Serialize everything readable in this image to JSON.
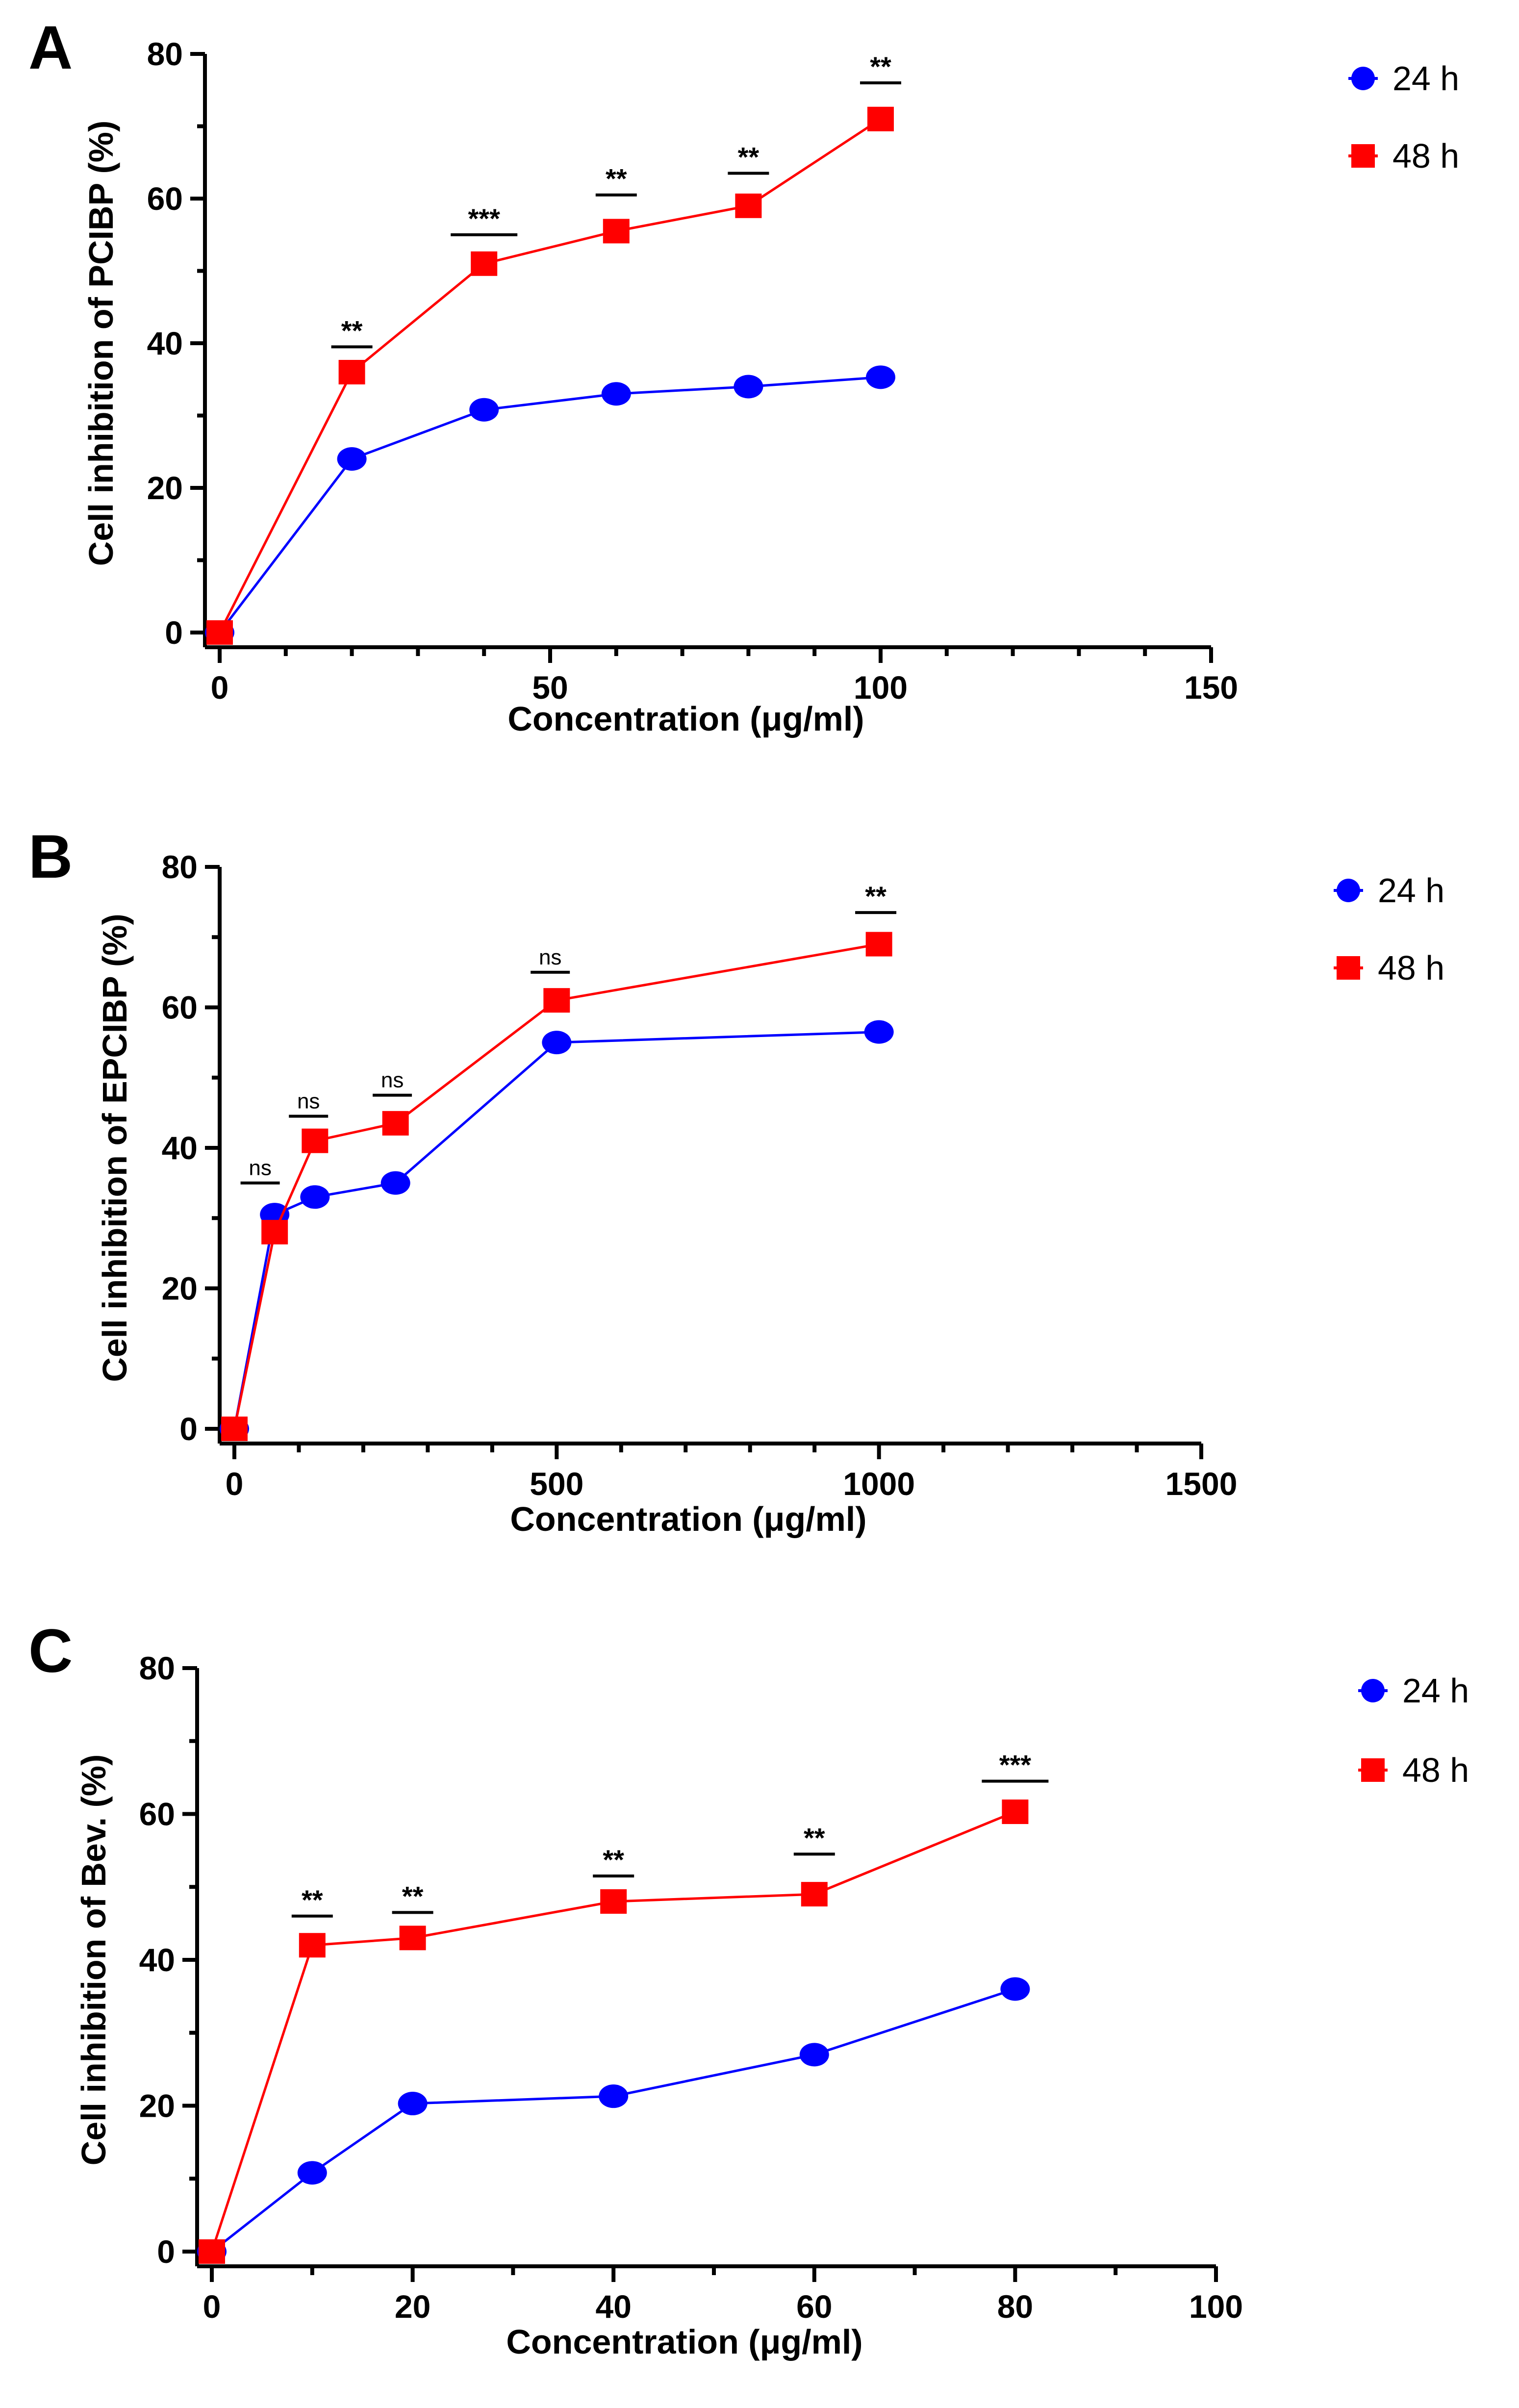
{
  "colors": {
    "series_24h": "#0000ff",
    "series_48h": "#ff0000",
    "axis": "#000000"
  },
  "chart_data": [
    {
      "type": "line",
      "panel_label": "A",
      "title": "",
      "xlabel": "Concentration (μg/ml)",
      "ylabel": "Cell inhibition of PCIBP (%)",
      "xlim": [
        0,
        150
      ],
      "ylim": [
        0,
        80
      ],
      "x_ticks": [
        0,
        50,
        100,
        150
      ],
      "y_ticks": [
        0,
        20,
        40,
        60,
        80
      ],
      "legend_position": "top-right",
      "series": [
        {
          "name": "24 h",
          "marker": "circle",
          "color": "#0000ff",
          "x": [
            0,
            20,
            40,
            60,
            80,
            100
          ],
          "y": [
            0,
            24,
            30.8,
            33,
            34,
            35.3
          ]
        },
        {
          "name": "48 h",
          "marker": "square",
          "color": "#ff0000",
          "x": [
            0,
            20,
            40,
            60,
            80,
            100
          ],
          "y": [
            0,
            36,
            51,
            55.5,
            59,
            71
          ]
        }
      ],
      "annotations": [
        {
          "x": 20,
          "text": "**",
          "bar_y": 39.5
        },
        {
          "x": 40,
          "text": "***",
          "bar_y": 55
        },
        {
          "x": 60,
          "text": "**",
          "bar_y": 60.5
        },
        {
          "x": 80,
          "text": "**",
          "bar_y": 63.5
        },
        {
          "x": 100,
          "text": "**",
          "bar_y": 76
        }
      ]
    },
    {
      "type": "line",
      "panel_label": "B",
      "title": "",
      "xlabel": "Concentration (μg/ml)",
      "ylabel": "Cell inhibition of EPCIBP (%)",
      "xlim": [
        0,
        1500
      ],
      "ylim": [
        0,
        80
      ],
      "x_ticks": [
        0,
        500,
        1000,
        1500
      ],
      "y_ticks": [
        0,
        20,
        40,
        60,
        80
      ],
      "legend_position": "top-right",
      "series": [
        {
          "name": "24 h",
          "marker": "circle",
          "color": "#0000ff",
          "x": [
            0,
            62.5,
            125,
            250,
            500,
            1000
          ],
          "y": [
            0,
            30.5,
            33,
            35,
            55,
            56.5
          ]
        },
        {
          "name": "48 h",
          "marker": "square",
          "color": "#ff0000",
          "x": [
            0,
            62.5,
            125,
            250,
            500,
            1000
          ],
          "y": [
            0,
            28,
            41,
            43.5,
            61,
            69
          ]
        }
      ],
      "annotations": [
        {
          "x": 40,
          "text": "ns",
          "bar_y": 35
        },
        {
          "x": 115,
          "text": "ns",
          "bar_y": 44.5
        },
        {
          "x": 245,
          "text": "ns",
          "bar_y": 47.5
        },
        {
          "x": 490,
          "text": "ns",
          "bar_y": 65
        },
        {
          "x": 995,
          "text": "**",
          "bar_y": 73.5
        }
      ]
    },
    {
      "type": "line",
      "panel_label": "C",
      "title": "",
      "xlabel": "Concentration (μg/ml)",
      "ylabel": "Cell inhibition of Bev. (%)",
      "xlim": [
        0,
        100
      ],
      "ylim": [
        0,
        80
      ],
      "x_ticks": [
        0,
        20,
        40,
        60,
        80,
        100
      ],
      "y_ticks": [
        0,
        20,
        40,
        60,
        80
      ],
      "legend_position": "top-right",
      "series": [
        {
          "name": "24 h",
          "marker": "circle",
          "color": "#0000ff",
          "x": [
            0,
            10,
            20,
            40,
            60,
            80
          ],
          "y": [
            0,
            10.8,
            20.3,
            21.3,
            27,
            36
          ]
        },
        {
          "name": "48 h",
          "marker": "square",
          "color": "#ff0000",
          "x": [
            0,
            10,
            20,
            40,
            60,
            80
          ],
          "y": [
            0,
            42,
            43,
            48,
            49,
            60.3
          ]
        }
      ],
      "annotations": [
        {
          "x": 10,
          "text": "**",
          "bar_y": 46
        },
        {
          "x": 20,
          "text": "**",
          "bar_y": 46.5
        },
        {
          "x": 40,
          "text": "**",
          "bar_y": 51.5
        },
        {
          "x": 60,
          "text": "**",
          "bar_y": 54.5
        },
        {
          "x": 80,
          "text": "***",
          "bar_y": 64.5
        }
      ]
    }
  ]
}
